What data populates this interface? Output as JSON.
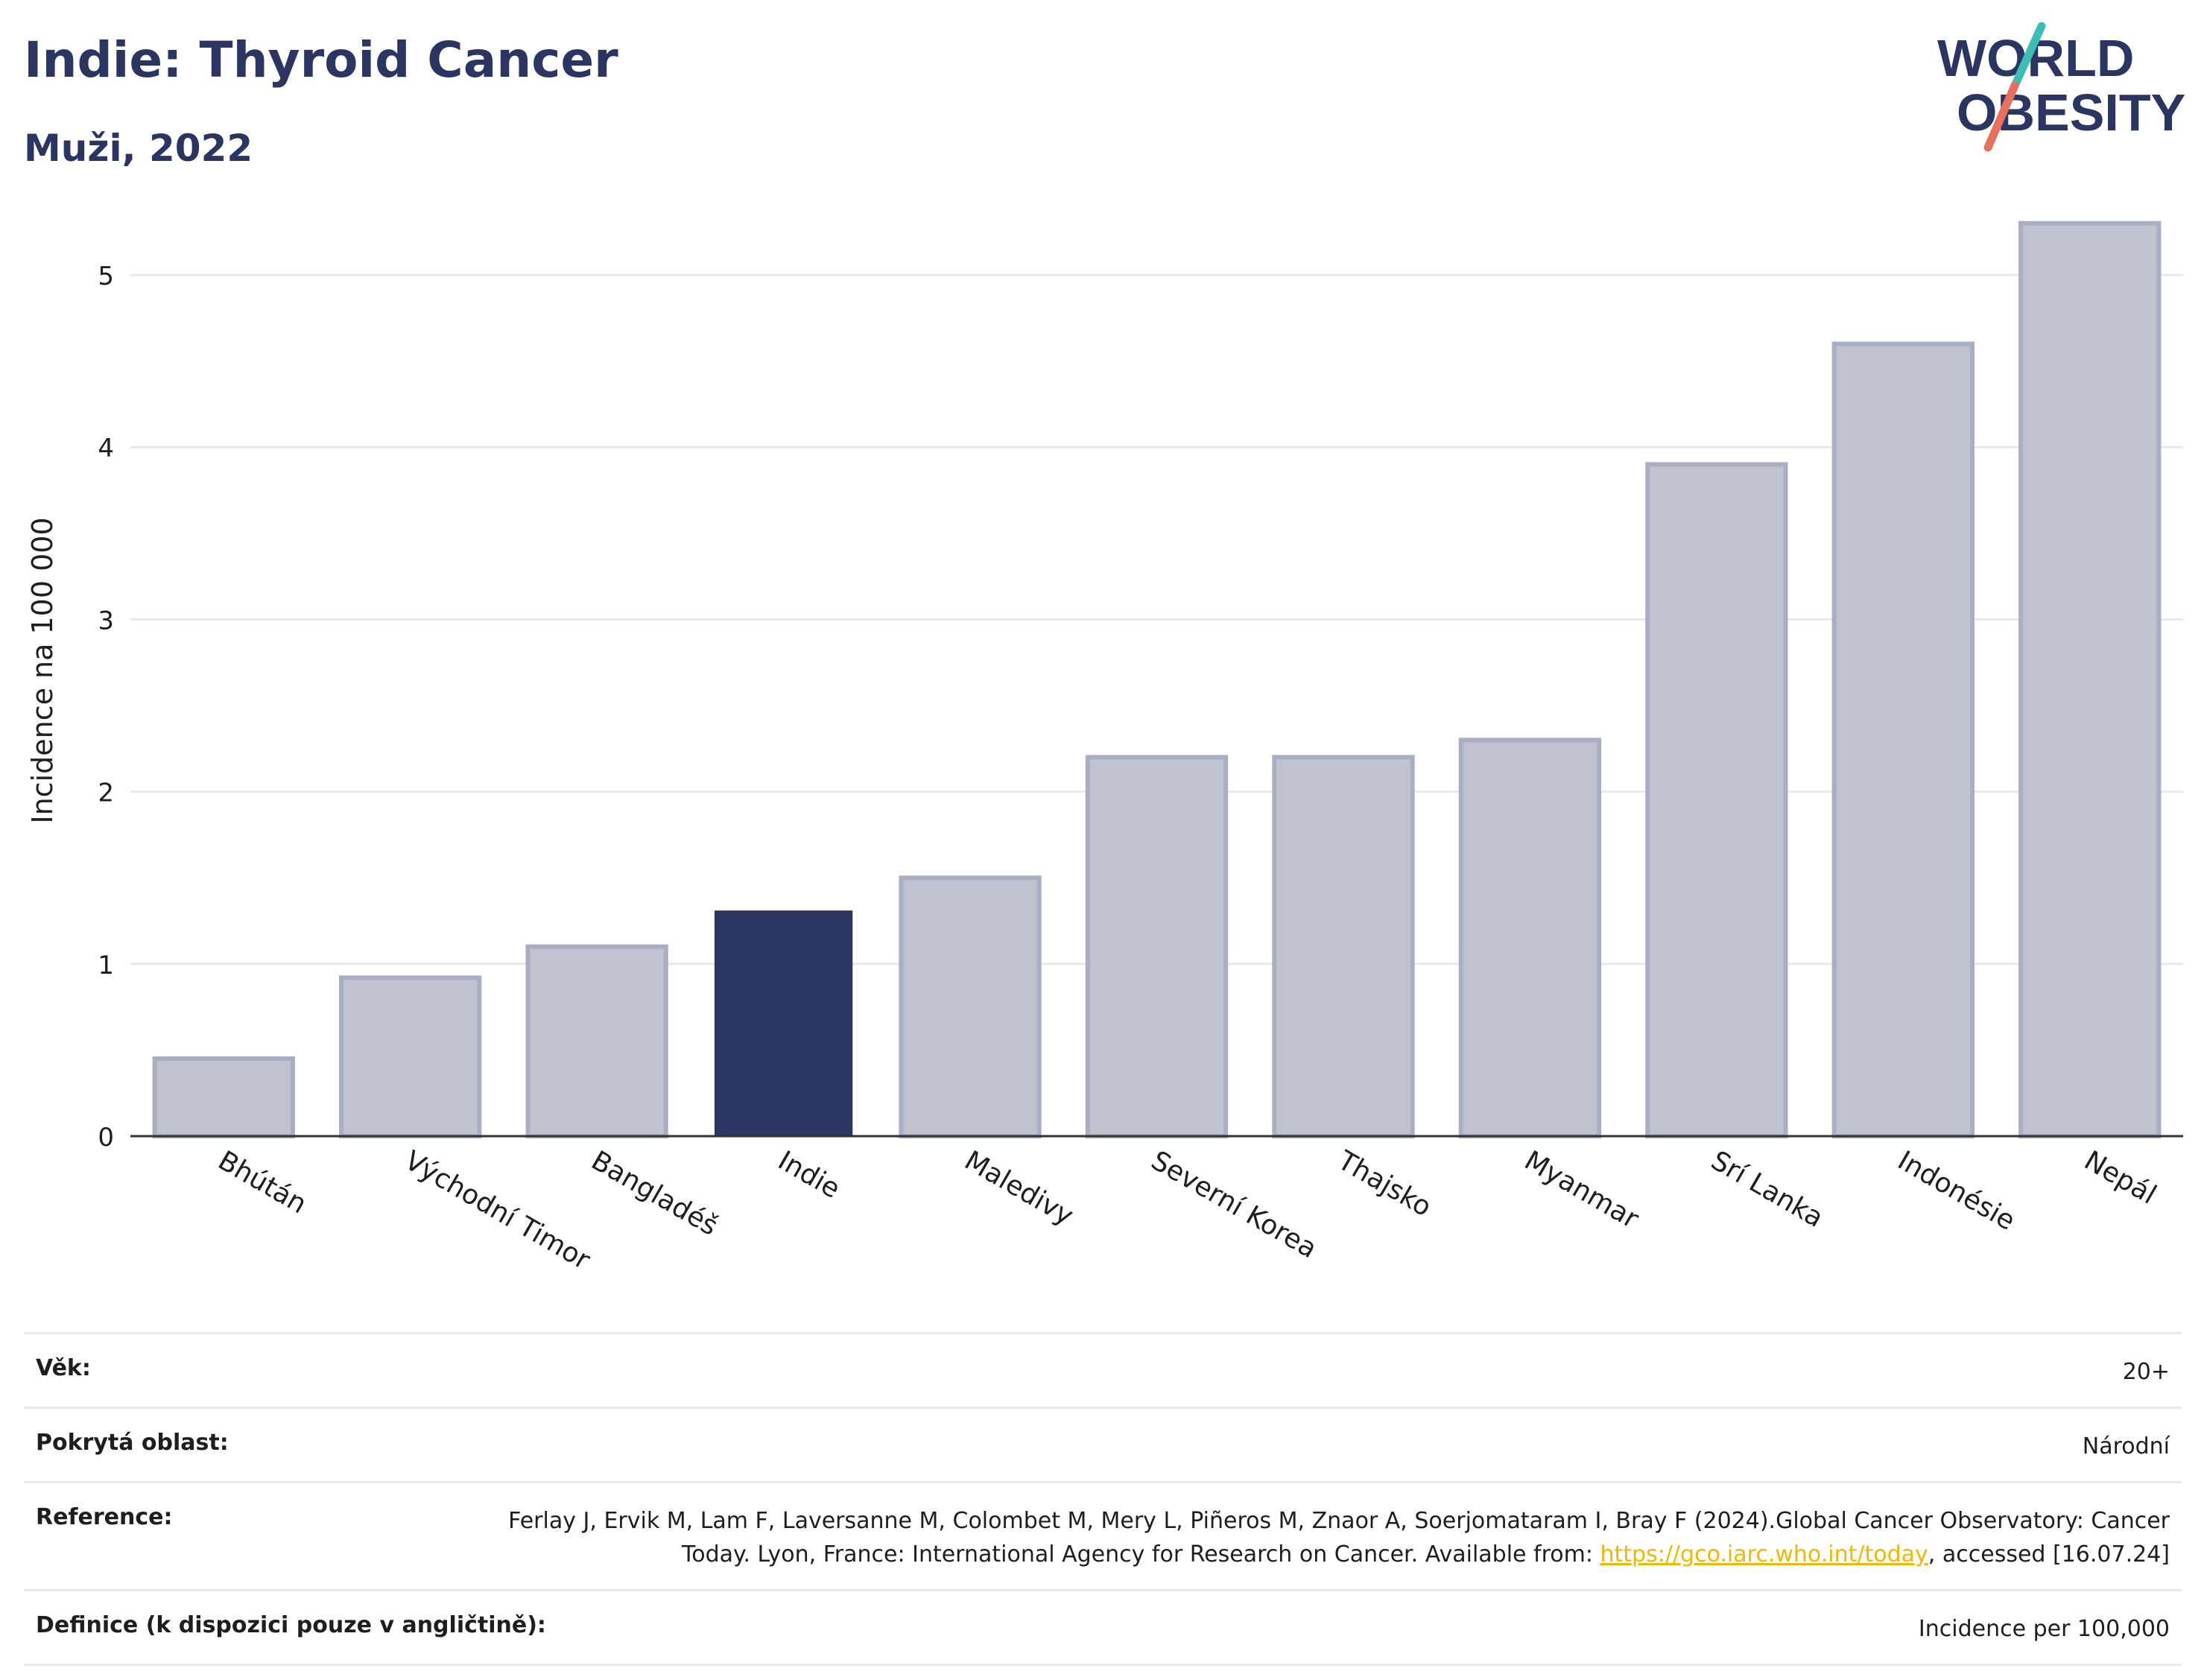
{
  "header": {
    "title": "Indie: Thyroid Cancer",
    "subtitle": "Muži, 2022"
  },
  "logo": {
    "line1": "WORLD",
    "line2": "OBESITY",
    "colors": {
      "text": "#2b3561",
      "slash_top": "#3bbfb4",
      "slash_bottom": "#e8705f"
    }
  },
  "chart_data": {
    "type": "bar",
    "categories": [
      "Bhútán",
      "Východní Timor",
      "Bangladéš",
      "Indie",
      "Maledivy",
      "Severní Korea",
      "Thajsko",
      "Myanmar",
      "Srí Lanka",
      "Indonésie",
      "Nepál"
    ],
    "values": [
      0.45,
      0.92,
      1.1,
      1.31,
      1.5,
      2.2,
      2.2,
      2.3,
      3.9,
      4.6,
      5.3
    ],
    "highlight": "Indie",
    "ylabel": "Incidence na 100 000",
    "ylim": [
      0,
      5.45
    ],
    "yticks": [
      0,
      1,
      2,
      3,
      4,
      5
    ],
    "grid": true,
    "colors": {
      "bar": "#bfc2cf",
      "bar_edge": "#a9aec3",
      "highlight": "#2b3561",
      "grid": "#e6e8ee",
      "axis": "#333333"
    }
  },
  "info": {
    "age": {
      "label": "Věk:",
      "value": "20+"
    },
    "area": {
      "label": "Pokrytá oblast:",
      "value": "Národní"
    },
    "reference": {
      "label": "Reference:",
      "text_before": "Ferlay J, Ervik M, Lam F, Laversanne M, Colombet M, Mery L, Piñeros M, Znaor A, Soerjomataram I, Bray F (2024).Global Cancer Observatory: Cancer Today. Lyon, France: International Agency for Research on Cancer. Available from: ",
      "link": "https://gco.iarc.who.int/today",
      "text_after": ", accessed [16.07.24]"
    },
    "definition": {
      "label": "Definice (k dispozici pouze v angličtině):",
      "value": "Incidence per 100,000"
    }
  }
}
